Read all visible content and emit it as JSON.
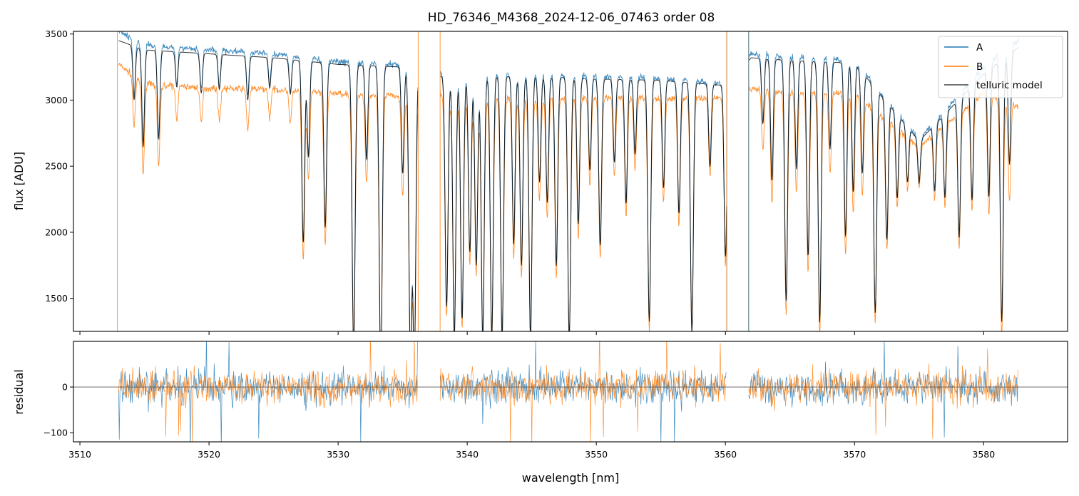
{
  "colors": {
    "series_a": "#1f77b4",
    "series_b": "#ff7f0e",
    "model": "#000000",
    "zero_line": "#555555"
  },
  "chart_data": [
    {
      "type": "line",
      "panel": "flux",
      "title": "HD_76346_M4368_2024-12-06_07463  order 08",
      "ylabel": "flux [ADU]",
      "xlim": [
        3509.5,
        3586.5
      ],
      "ylim": [
        1250,
        3520
      ],
      "yticks": [
        "1500",
        "2000",
        "2500",
        "3000",
        "3500"
      ],
      "grid": false,
      "legend": "top-right",
      "segments": [
        [
          3513.0,
          3536.2
        ],
        [
          3537.9,
          3560.1
        ],
        [
          3561.8,
          3582.7
        ]
      ],
      "series": [
        {
          "name": "A",
          "color": "#1f77b4",
          "x": [
            3513,
            3515,
            3520,
            3525,
            3530,
            3535,
            3536,
            3538,
            3545,
            3550,
            3555,
            3560,
            3562,
            3565,
            3570,
            3575,
            3580,
            3582.7
          ],
          "values": [
            3520,
            3420,
            3380,
            3350,
            3290,
            3270,
            3250,
            3200,
            3200,
            3180,
            3170,
            3120,
            3350,
            3330,
            3300,
            2700,
            3250,
            3450
          ]
        },
        {
          "name": "B",
          "color": "#ff7f0e",
          "x": [
            3513,
            3515,
            3520,
            3525,
            3530,
            3535,
            3536,
            3538,
            3545,
            3550,
            3555,
            3560,
            3562,
            3565,
            3570,
            3575,
            3580,
            3582.7
          ],
          "values": [
            3270,
            3120,
            3090,
            3080,
            3050,
            3030,
            3020,
            3040,
            3000,
            3020,
            3010,
            3020,
            3080,
            3060,
            3050,
            2650,
            3050,
            2950
          ]
        },
        {
          "name": "telluric model",
          "color": "#000000",
          "x": [
            3513,
            3515,
            3520,
            3525,
            3530,
            3535,
            3536,
            3538,
            3545,
            3550,
            3555,
            3560,
            3562,
            3565,
            3570,
            3575,
            3580,
            3582.7
          ],
          "values": [
            3450,
            3380,
            3350,
            3320,
            3270,
            3250,
            3230,
            3180,
            3180,
            3160,
            3150,
            3110,
            3320,
            3300,
            3280,
            2690,
            3200,
            3400
          ]
        }
      ],
      "absorption_lines": [
        {
          "x": 3514.2,
          "depth": 0.12
        },
        {
          "x": 3514.9,
          "depth": 0.22
        },
        {
          "x": 3516.1,
          "depth": 0.2
        },
        {
          "x": 3517.5,
          "depth": 0.08
        },
        {
          "x": 3519.4,
          "depth": 0.09
        },
        {
          "x": 3520.8,
          "depth": 0.08
        },
        {
          "x": 3523.0,
          "depth": 0.1
        },
        {
          "x": 3524.7,
          "depth": 0.07
        },
        {
          "x": 3526.3,
          "depth": 0.08
        },
        {
          "x": 3527.3,
          "depth": 0.42
        },
        {
          "x": 3527.7,
          "depth": 0.22
        },
        {
          "x": 3529.0,
          "depth": 0.38
        },
        {
          "x": 3531.2,
          "depth": 0.65
        },
        {
          "x": 3532.2,
          "depth": 0.22
        },
        {
          "x": 3533.3,
          "depth": 0.7
        },
        {
          "x": 3535.0,
          "depth": 0.25
        },
        {
          "x": 3535.6,
          "depth": 0.68
        },
        {
          "x": 3535.9,
          "depth": 0.68
        },
        {
          "x": 3538.4,
          "depth": 0.55
        },
        {
          "x": 3539.0,
          "depth": 0.62
        },
        {
          "x": 3539.6,
          "depth": 0.58
        },
        {
          "x": 3540.2,
          "depth": 0.42
        },
        {
          "x": 3540.7,
          "depth": 0.45
        },
        {
          "x": 3541.2,
          "depth": 0.62
        },
        {
          "x": 3541.9,
          "depth": 0.62
        },
        {
          "x": 3542.7,
          "depth": 0.62
        },
        {
          "x": 3543.6,
          "depth": 0.4
        },
        {
          "x": 3544.2,
          "depth": 0.45
        },
        {
          "x": 3544.9,
          "depth": 0.62
        },
        {
          "x": 3545.6,
          "depth": 0.25
        },
        {
          "x": 3546.2,
          "depth": 0.3
        },
        {
          "x": 3546.9,
          "depth": 0.45
        },
        {
          "x": 3547.9,
          "depth": 0.62
        },
        {
          "x": 3548.6,
          "depth": 0.35
        },
        {
          "x": 3549.5,
          "depth": 0.22
        },
        {
          "x": 3550.3,
          "depth": 0.4
        },
        {
          "x": 3551.4,
          "depth": 0.2
        },
        {
          "x": 3552.3,
          "depth": 0.3
        },
        {
          "x": 3553.0,
          "depth": 0.18
        },
        {
          "x": 3554.1,
          "depth": 0.58
        },
        {
          "x": 3555.2,
          "depth": 0.26
        },
        {
          "x": 3556.4,
          "depth": 0.32
        },
        {
          "x": 3557.4,
          "depth": 0.6
        },
        {
          "x": 3558.8,
          "depth": 0.2
        },
        {
          "x": 3560.0,
          "depth": 0.42
        },
        {
          "x": 3562.9,
          "depth": 0.15
        },
        {
          "x": 3563.6,
          "depth": 0.28
        },
        {
          "x": 3564.7,
          "depth": 0.55
        },
        {
          "x": 3565.5,
          "depth": 0.25
        },
        {
          "x": 3566.4,
          "depth": 0.45
        },
        {
          "x": 3567.3,
          "depth": 0.6
        },
        {
          "x": 3568.1,
          "depth": 0.2
        },
        {
          "x": 3569.3,
          "depth": 0.4
        },
        {
          "x": 3569.9,
          "depth": 0.3
        },
        {
          "x": 3570.6,
          "depth": 0.24
        },
        {
          "x": 3571.6,
          "depth": 0.55
        },
        {
          "x": 3572.5,
          "depth": 0.35
        },
        {
          "x": 3573.3,
          "depth": 0.22
        },
        {
          "x": 3574.1,
          "depth": 0.15
        },
        {
          "x": 3575.0,
          "depth": 0.12
        },
        {
          "x": 3576.2,
          "depth": 0.18
        },
        {
          "x": 3577.0,
          "depth": 0.22
        },
        {
          "x": 3578.1,
          "depth": 0.35
        },
        {
          "x": 3579.1,
          "depth": 0.28
        },
        {
          "x": 3580.4,
          "depth": 0.3
        },
        {
          "x": 3581.4,
          "depth": 0.6
        },
        {
          "x": 3582.0,
          "depth": 0.25
        }
      ],
      "spikes": [
        {
          "x": 3512.9,
          "series": "B"
        },
        {
          "x": 3536.2,
          "series": "B"
        },
        {
          "x": 3537.9,
          "series": "B"
        },
        {
          "x": 3560.1,
          "series": "A"
        },
        {
          "x": 3560.1,
          "series": "B"
        },
        {
          "x": 3561.8,
          "series": "B"
        },
        {
          "x": 3561.8,
          "series": "A"
        }
      ]
    },
    {
      "type": "line",
      "panel": "residual",
      "xlabel": "wavelength [nm]",
      "ylabel": "residual",
      "xlim": [
        3509.5,
        3586.5
      ],
      "ylim": [
        -120,
        100
      ],
      "xticks": [
        "3510",
        "3520",
        "3530",
        "3540",
        "3550",
        "3560",
        "3570",
        "3580"
      ],
      "yticks": [
        "-100",
        "0"
      ],
      "reference_line_y": 0,
      "grid": false,
      "series": [
        {
          "name": "A",
          "color": "#1f77b4",
          "noise_amplitude": 30
        },
        {
          "name": "B",
          "color": "#ff7f0e",
          "noise_amplitude": 30
        }
      ]
    }
  ]
}
